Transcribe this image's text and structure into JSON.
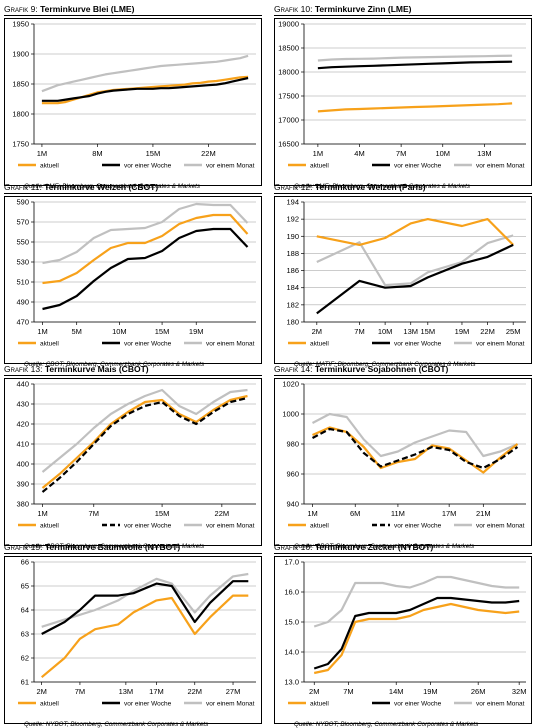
{
  "colors": {
    "aktuell": "#f7a11a",
    "woche": "#000000",
    "monat": "#c0c0c0"
  },
  "chart_data": [
    {
      "type": "line",
      "graphic_label": "Grafik 9:",
      "title": "Terminkurve Blei (LME)",
      "ylim": [
        1750,
        1950
      ],
      "yticks": [
        1750,
        1800,
        1850,
        1900,
        1950
      ],
      "ydecimals": 0,
      "x": [
        1,
        2,
        3,
        4,
        5,
        6,
        7,
        8,
        9,
        10,
        11,
        12,
        13,
        14,
        15,
        16,
        17,
        18,
        19,
        20,
        21,
        22,
        23,
        24,
        25,
        26,
        27
      ],
      "xlim": [
        0,
        28
      ],
      "xtick_labels": [
        {
          "x": 1,
          "label": "1M"
        },
        {
          "x": 8,
          "label": "8M"
        },
        {
          "x": 15,
          "label": "15M"
        },
        {
          "x": 22,
          "label": "22M"
        }
      ],
      "series": [
        {
          "name": "aktuell",
          "color_key": "aktuell",
          "dash": false,
          "values": [
            1818,
            1818,
            1818,
            1820,
            1824,
            1828,
            1832,
            1836,
            1838,
            1840,
            1841,
            1842,
            1843,
            1844,
            1845,
            1846,
            1847,
            1848,
            1849,
            1851,
            1852,
            1854,
            1855,
            1857,
            1859,
            1861,
            1862
          ]
        },
        {
          "name": "vor einer Woche",
          "color_key": "woche",
          "dash": false,
          "values": [
            1822,
            1822,
            1822,
            1824,
            1826,
            1828,
            1830,
            1834,
            1837,
            1839,
            1840,
            1841,
            1842,
            1842,
            1842,
            1843,
            1843,
            1844,
            1845,
            1846,
            1847,
            1848,
            1849,
            1851,
            1854,
            1857,
            1860
          ]
        },
        {
          "name": "vor einem Monat",
          "color_key": "monat",
          "dash": false,
          "values": [
            1838,
            1843,
            1848,
            1851,
            1854,
            1857,
            1860,
            1863,
            1866,
            1868,
            1870,
            1872,
            1874,
            1876,
            1878,
            1880,
            1881,
            1882,
            1883,
            1884,
            1885,
            1886,
            1887,
            1889,
            1891,
            1893,
            1897
          ]
        }
      ],
      "source": "Quelle: LME; Bloomberg, Commerzbank Corporates & Markets"
    },
    {
      "type": "line",
      "graphic_label": "Grafik 10:",
      "title": "Terminkurve Zinn (LME)",
      "ylim": [
        16500,
        19000
      ],
      "yticks": [
        16500,
        17000,
        17500,
        18000,
        18500,
        19000
      ],
      "ydecimals": 0,
      "x": [
        1,
        2,
        3,
        4,
        5,
        6,
        7,
        8,
        9,
        10,
        11,
        12,
        13,
        14,
        15
      ],
      "xlim": [
        0,
        16
      ],
      "xtick_labels": [
        {
          "x": 1,
          "label": "1M"
        },
        {
          "x": 4,
          "label": "4M"
        },
        {
          "x": 7,
          "label": "7M"
        },
        {
          "x": 10,
          "label": "10M"
        },
        {
          "x": 13,
          "label": "13M"
        }
      ],
      "series": [
        {
          "name": "aktuell",
          "color_key": "aktuell",
          "dash": false,
          "values": [
            17180,
            17200,
            17220,
            17230,
            17240,
            17250,
            17260,
            17270,
            17280,
            17290,
            17300,
            17310,
            17320,
            17330,
            17345
          ]
        },
        {
          "name": "vor einer Woche",
          "color_key": "woche",
          "dash": false,
          "values": [
            18080,
            18100,
            18110,
            18120,
            18130,
            18140,
            18150,
            18160,
            18170,
            18180,
            18190,
            18200,
            18205,
            18210,
            18215
          ]
        },
        {
          "name": "vor einem Monat",
          "color_key": "monat",
          "dash": false,
          "values": [
            18240,
            18260,
            18270,
            18275,
            18280,
            18290,
            18300,
            18305,
            18310,
            18315,
            18320,
            18325,
            18330,
            18335,
            18340
          ]
        }
      ],
      "source": "Quelle: LME; Bloomberg, Commerzbank Corporates & Markets"
    },
    {
      "type": "line",
      "graphic_label": "Grafik 11:",
      "title": "Terminkurve Weizen (CBOT)",
      "ylim": [
        470,
        590
      ],
      "yticks": [
        470,
        490,
        510,
        530,
        550,
        570,
        590
      ],
      "ydecimals": 0,
      "x": [
        1,
        3,
        5,
        7,
        9,
        11,
        13,
        15,
        17,
        19,
        21,
        23,
        25
      ],
      "xlim": [
        0,
        26
      ],
      "xtick_labels": [
        {
          "x": 1,
          "label": "1M"
        },
        {
          "x": 5,
          "label": "5M"
        },
        {
          "x": 10,
          "label": "10M"
        },
        {
          "x": 15,
          "label": "15M"
        },
        {
          "x": 19,
          "label": "19M"
        }
      ],
      "series": [
        {
          "name": "aktuell",
          "color_key": "aktuell",
          "dash": false,
          "values": [
            509,
            511,
            519,
            532,
            544,
            549,
            549,
            556,
            568,
            574,
            577,
            577,
            558
          ]
        },
        {
          "name": "vor einer Woche",
          "color_key": "woche",
          "dash": false,
          "values": [
            483,
            487,
            496,
            511,
            524,
            533,
            534,
            541,
            554,
            561,
            563,
            563,
            545
          ]
        },
        {
          "name": "vor einem Monat",
          "color_key": "monat",
          "dash": false,
          "values": [
            529,
            532,
            540,
            554,
            562,
            563,
            564,
            570,
            583,
            588,
            587,
            587,
            569
          ]
        }
      ],
      "source": "Quelle: CBOT; Bloomberg, Commerzbank Corporates & Markets"
    },
    {
      "type": "line",
      "graphic_label": "Grafik 12:",
      "title": "Terminkurve Weizen (Paris)",
      "ylim": [
        180,
        194
      ],
      "yticks": [
        180,
        182,
        184,
        186,
        188,
        190,
        192,
        194
      ],
      "ydecimals": 0,
      "x": [
        2,
        7,
        10,
        13,
        15,
        19,
        22,
        25
      ],
      "xlim": [
        0.5,
        26.5
      ],
      "xtick_labels": [
        {
          "x": 2,
          "label": "2M"
        },
        {
          "x": 7,
          "label": "7M"
        },
        {
          "x": 10,
          "label": "10M"
        },
        {
          "x": 13,
          "label": "13M"
        },
        {
          "x": 15,
          "label": "15M"
        },
        {
          "x": 19,
          "label": "19M"
        },
        {
          "x": 22,
          "label": "22M"
        },
        {
          "x": 25,
          "label": "25M"
        }
      ],
      "series": [
        {
          "name": "aktuell",
          "color_key": "aktuell",
          "dash": false,
          "values": [
            190.0,
            189.0,
            189.8,
            191.5,
            192.0,
            191.2,
            192.0,
            189.0
          ]
        },
        {
          "name": "vor einer Woche",
          "color_key": "woche",
          "dash": false,
          "values": [
            181.0,
            184.8,
            184.0,
            184.2,
            185.2,
            186.8,
            187.6,
            189.0
          ]
        },
        {
          "name": "vor einem Monat",
          "color_key": "monat",
          "dash": false,
          "values": [
            187.0,
            189.3,
            184.3,
            184.5,
            185.8,
            187.0,
            189.2,
            190.1
          ]
        }
      ],
      "source": "Quelle: MATIF; Bloomberg, Commerzbank Corporates & Markets"
    },
    {
      "type": "line",
      "graphic_label": "Grafik 13:",
      "title": "Terminkurve Mais (CBOT)",
      "ylim": [
        380,
        440
      ],
      "yticks": [
        380,
        390,
        400,
        410,
        420,
        430,
        440
      ],
      "ydecimals": 0,
      "x": [
        1,
        3,
        5,
        7,
        9,
        11,
        13,
        15,
        17,
        19,
        21,
        23,
        25
      ],
      "xlim": [
        0,
        26
      ],
      "xtick_labels": [
        {
          "x": 1,
          "label": "1M"
        },
        {
          "x": 7,
          "label": "7M"
        },
        {
          "x": 15,
          "label": "15M"
        },
        {
          "x": 22,
          "label": "22M"
        }
      ],
      "series": [
        {
          "name": "aktuell",
          "color_key": "aktuell",
          "dash": false,
          "values": [
            388,
            395,
            403,
            411,
            420,
            426,
            431,
            432,
            425,
            421,
            427,
            432,
            434
          ]
        },
        {
          "name": "vor einer Woche",
          "color_key": "woche",
          "dash": true,
          "values": [
            386,
            393,
            401,
            410,
            419,
            425,
            429,
            431,
            424,
            420,
            426,
            431,
            433
          ]
        },
        {
          "name": "vor einem Monat",
          "color_key": "monat",
          "dash": false,
          "values": [
            396,
            403,
            410,
            418,
            425,
            430,
            434,
            437,
            429,
            425,
            431,
            436,
            437
          ]
        }
      ],
      "source": "Quelle: CBOT; Bloomberg, Commerzbank Corporates & Markets"
    },
    {
      "type": "line",
      "graphic_label": "Grafik 14:",
      "title": "Terminkurve Sojabohnen (CBOT)",
      "ylim": [
        940,
        1020
      ],
      "yticks": [
        940,
        960,
        980,
        1000,
        1020
      ],
      "ydecimals": 0,
      "x": [
        1,
        3,
        5,
        7,
        9,
        11,
        13,
        15,
        17,
        19,
        21,
        23,
        25
      ],
      "xlim": [
        0,
        26
      ],
      "xtick_labels": [
        {
          "x": 1,
          "label": "1M"
        },
        {
          "x": 6,
          "label": "6M"
        },
        {
          "x": 11,
          "label": "11M"
        },
        {
          "x": 17,
          "label": "17M"
        },
        {
          "x": 21,
          "label": "21M"
        }
      ],
      "series": [
        {
          "name": "aktuell",
          "color_key": "aktuell",
          "dash": false,
          "values": [
            986,
            991,
            988,
            978,
            964,
            968,
            970,
            979,
            977,
            969,
            961,
            971,
            980
          ]
        },
        {
          "name": "vor einer Woche",
          "color_key": "woche",
          "dash": true,
          "values": [
            984,
            990,
            988,
            974,
            965,
            969,
            973,
            978,
            976,
            968,
            964,
            970,
            978
          ]
        },
        {
          "name": "vor einem Monat",
          "color_key": "monat",
          "dash": false,
          "values": [
            994,
            1000,
            998,
            983,
            972,
            975,
            981,
            985,
            989,
            988,
            972,
            975,
            980
          ]
        }
      ],
      "source": "Quelle: CBOT; Bloomberg, Commerzbank Corporates & Markets"
    },
    {
      "type": "line",
      "graphic_label": "Grafik 15:",
      "title": "Terminkurve Baumwolle (NYBOT)",
      "ylim": [
        61,
        66
      ],
      "yticks": [
        61,
        62,
        63,
        64,
        65,
        66
      ],
      "ydecimals": 0,
      "x": [
        2,
        5,
        7,
        9,
        12,
        14,
        17,
        19,
        22,
        24,
        27,
        29
      ],
      "xlim": [
        1,
        30
      ],
      "xtick_labels": [
        {
          "x": 2,
          "label": "2M"
        },
        {
          "x": 7,
          "label": "7M"
        },
        {
          "x": 13,
          "label": "13M"
        },
        {
          "x": 17,
          "label": "17M"
        },
        {
          "x": 22,
          "label": "22M"
        },
        {
          "x": 27,
          "label": "27M"
        }
      ],
      "series": [
        {
          "name": "aktuell",
          "color_key": "aktuell",
          "dash": false,
          "values": [
            61.2,
            62.0,
            62.8,
            63.2,
            63.4,
            63.9,
            64.4,
            64.5,
            63.0,
            63.7,
            64.6,
            64.6
          ]
        },
        {
          "name": "vor einer Woche",
          "color_key": "woche",
          "dash": false,
          "values": [
            63.0,
            63.5,
            64.0,
            64.6,
            64.6,
            64.7,
            65.1,
            65.0,
            63.5,
            64.3,
            65.2,
            65.2
          ]
        },
        {
          "name": "vor einem Monat",
          "color_key": "monat",
          "dash": false,
          "values": [
            63.3,
            63.6,
            63.8,
            64.0,
            64.4,
            64.8,
            65.3,
            65.1,
            63.9,
            64.6,
            65.4,
            65.5
          ]
        }
      ],
      "source": "Quelle: NYBOT; Bloomberg, Commerzbank Corporates & Markets"
    },
    {
      "type": "line",
      "graphic_label": "Grafik 16:",
      "title": "Terminkurve Zucker (NYBOT)",
      "ylim": [
        13.0,
        17.0
      ],
      "yticks": [
        13.0,
        14.0,
        15.0,
        16.0,
        17.0
      ],
      "ydecimals": 1,
      "x": [
        2,
        4,
        6,
        8,
        10,
        12,
        14,
        16,
        18,
        20,
        22,
        24,
        26,
        28,
        30,
        32
      ],
      "xlim": [
        0.5,
        33
      ],
      "xtick_labels": [
        {
          "x": 2,
          "label": "2M"
        },
        {
          "x": 7,
          "label": "7M"
        },
        {
          "x": 14,
          "label": "14M"
        },
        {
          "x": 19,
          "label": "19M"
        },
        {
          "x": 26,
          "label": "26M"
        },
        {
          "x": 32,
          "label": "32M"
        }
      ],
      "series": [
        {
          "name": "aktuell",
          "color_key": "aktuell",
          "dash": false,
          "values": [
            13.3,
            13.4,
            13.9,
            15.0,
            15.1,
            15.1,
            15.1,
            15.2,
            15.4,
            15.5,
            15.6,
            15.5,
            15.4,
            15.35,
            15.3,
            15.35
          ]
        },
        {
          "name": "vor einer Woche",
          "color_key": "woche",
          "dash": false,
          "values": [
            13.45,
            13.6,
            14.1,
            15.2,
            15.3,
            15.3,
            15.3,
            15.4,
            15.6,
            15.8,
            15.8,
            15.75,
            15.7,
            15.65,
            15.65,
            15.7
          ]
        },
        {
          "name": "vor einem Monat",
          "color_key": "monat",
          "dash": false,
          "values": [
            14.85,
            15.0,
            15.4,
            16.3,
            16.3,
            16.3,
            16.2,
            16.15,
            16.3,
            16.5,
            16.5,
            16.4,
            16.3,
            16.2,
            16.15,
            16.15
          ]
        }
      ],
      "source": "Quelle: NYBOT; Bloomberg, Commerzbank Corporates & Markets"
    }
  ]
}
